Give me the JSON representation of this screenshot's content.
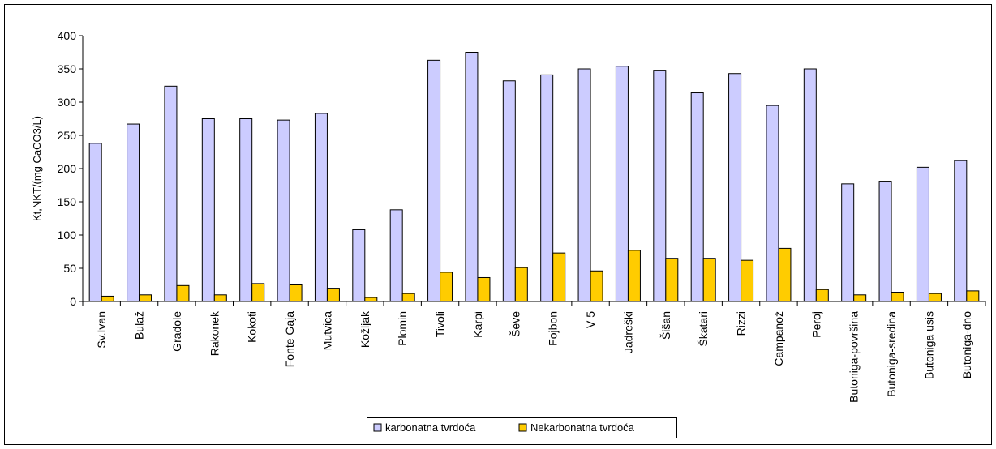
{
  "chart_data": {
    "type": "bar",
    "title": "",
    "xlabel": "",
    "ylabel": "Kt,NKT/(mg CaCO3/L)",
    "ylim": [
      0,
      400
    ],
    "yticks": [
      0,
      50,
      100,
      150,
      200,
      250,
      300,
      350,
      400
    ],
    "grid": false,
    "legend_position": "bottom",
    "categories": [
      "Sv.Ivan",
      "Bulaž",
      "Gradole",
      "Rakonek",
      "Kokoti",
      "Fonte Gaja",
      "Mutvica",
      "Kožljak",
      "Plomin",
      "Tivoli",
      "Karpi",
      "Ševe",
      "Fojbon",
      "V 5",
      "Jadreški",
      "Šišan",
      "Škatari",
      "Rizzi",
      "Campanož",
      "Peroj",
      "Butoniga-površina",
      "Butoniga-sredina",
      "Butoniga usis",
      "Butoniga-dno"
    ],
    "series": [
      {
        "name": "karbonatna tvrdoća",
        "color": "#ccccff",
        "values": [
          238,
          267,
          324,
          275,
          275,
          273,
          283,
          108,
          138,
          363,
          375,
          332,
          341,
          350,
          354,
          348,
          314,
          343,
          295,
          350,
          177,
          181,
          202,
          212
        ]
      },
      {
        "name": "Nekarbonatna tvrdoća",
        "color": "#ffcc00",
        "values": [
          8,
          10,
          24,
          10,
          27,
          25,
          20,
          6,
          12,
          44,
          36,
          51,
          73,
          46,
          77,
          65,
          65,
          62,
          80,
          18,
          10,
          14,
          12,
          16
        ]
      }
    ]
  }
}
